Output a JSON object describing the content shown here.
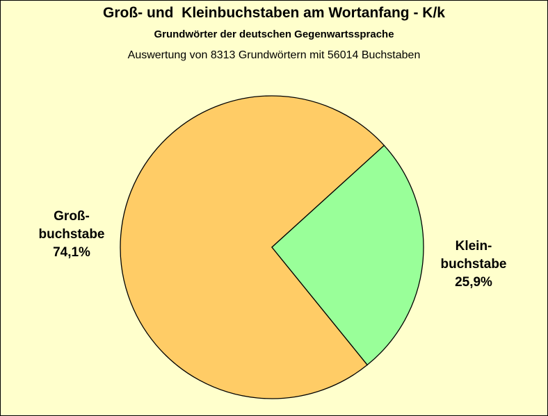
{
  "chart_data": {
    "type": "pie",
    "title": "Groß- und  Kleinbuchstaben am Wortanfang - K/k",
    "subtitle": "Grundwörter der deutschen Gegenwartssprache",
    "note": "Auswertung von 8313 Grundwörtern mit 56014 Buchstaben",
    "categories": [
      "Groß-\nbuchstabe",
      "Klein-\nbuchstabe"
    ],
    "values": [
      74.1,
      25.9
    ],
    "value_labels": [
      "74,1%",
      "25,9%"
    ],
    "colors": [
      "#FFCC66",
      "#99FF99"
    ]
  }
}
